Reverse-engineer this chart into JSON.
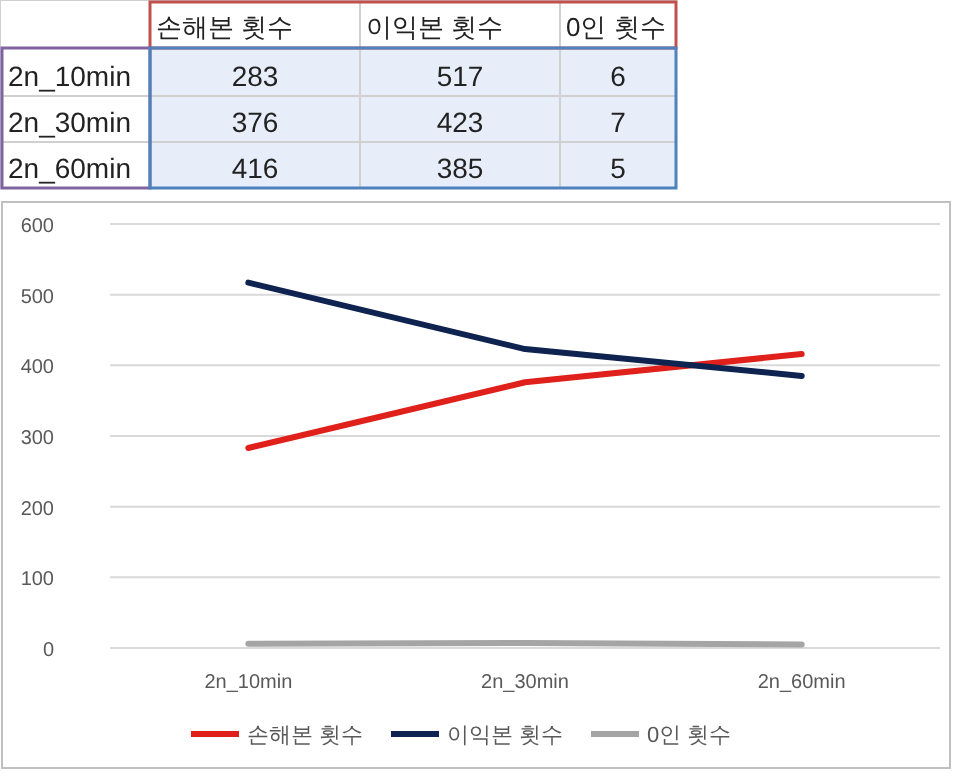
{
  "chart_data": [
    {
      "type": "heatmap",
      "categories": [
        "손해본 횟수",
        "이익본 횟수",
        "0인 횟수"
      ],
      "y_categories": [
        "2n_10min",
        "2n_30min",
        "2n_60min"
      ],
      "cells": [
        [
          283,
          517,
          6
        ],
        [
          376,
          423,
          7
        ],
        [
          416,
          385,
          5
        ]
      ],
      "cell_labels": [
        [
          "283",
          "517",
          "6"
        ],
        [
          "376",
          "423",
          "7"
        ],
        [
          "416",
          "385",
          "5"
        ]
      ]
    },
    {
      "type": "line",
      "categories": [
        "2n_10min",
        "2n_30min",
        "2n_60min"
      ],
      "series": [
        {
          "name": "손해본 횟수",
          "color": "#e0201b",
          "values": [
            283,
            376,
            416
          ]
        },
        {
          "name": "이익본 횟수",
          "color": "#0e2350",
          "values": [
            517,
            423,
            385
          ]
        },
        {
          "name": "0인 횟수",
          "color": "#a5a5a5",
          "values": [
            6,
            7,
            5
          ]
        }
      ],
      "ylim": [
        0,
        600
      ],
      "yticks": [
        0,
        100,
        200,
        300,
        400,
        500,
        600
      ],
      "grid": "y",
      "legend": "bottom",
      "marker": "none",
      "line_style": "solid"
    }
  ]
}
